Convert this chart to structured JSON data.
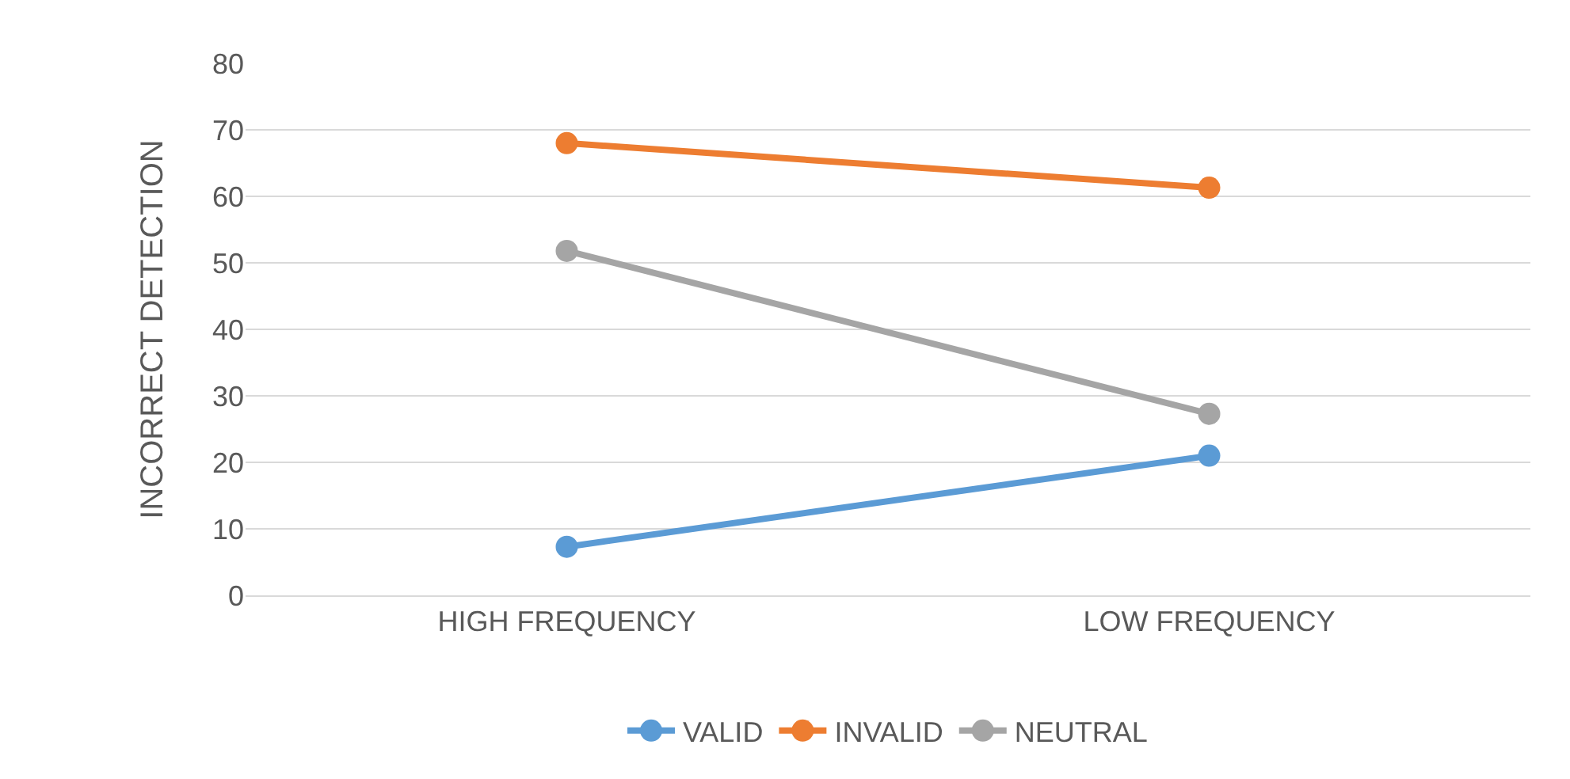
{
  "chart_data": {
    "type": "line",
    "ylabel": "INCORRECT DETECTION",
    "categories": [
      "HIGH FREQUENCY",
      "LOW FREQUENCY"
    ],
    "series": [
      {
        "name": "VALID",
        "color": "#5b9bd5",
        "values": [
          7.3,
          21
        ]
      },
      {
        "name": "INVALID",
        "color": "#ed7d31",
        "values": [
          68,
          61.3
        ]
      },
      {
        "name": "NEUTRAL",
        "color": "#a5a5a5",
        "values": [
          51.8,
          27.3
        ]
      }
    ],
    "ylim": [
      0,
      80
    ],
    "yticks": [
      0,
      10,
      20,
      30,
      40,
      50,
      60,
      70,
      80
    ],
    "grid": "y",
    "legend": "bottom",
    "marker": "circle",
    "line_style": "solid"
  }
}
